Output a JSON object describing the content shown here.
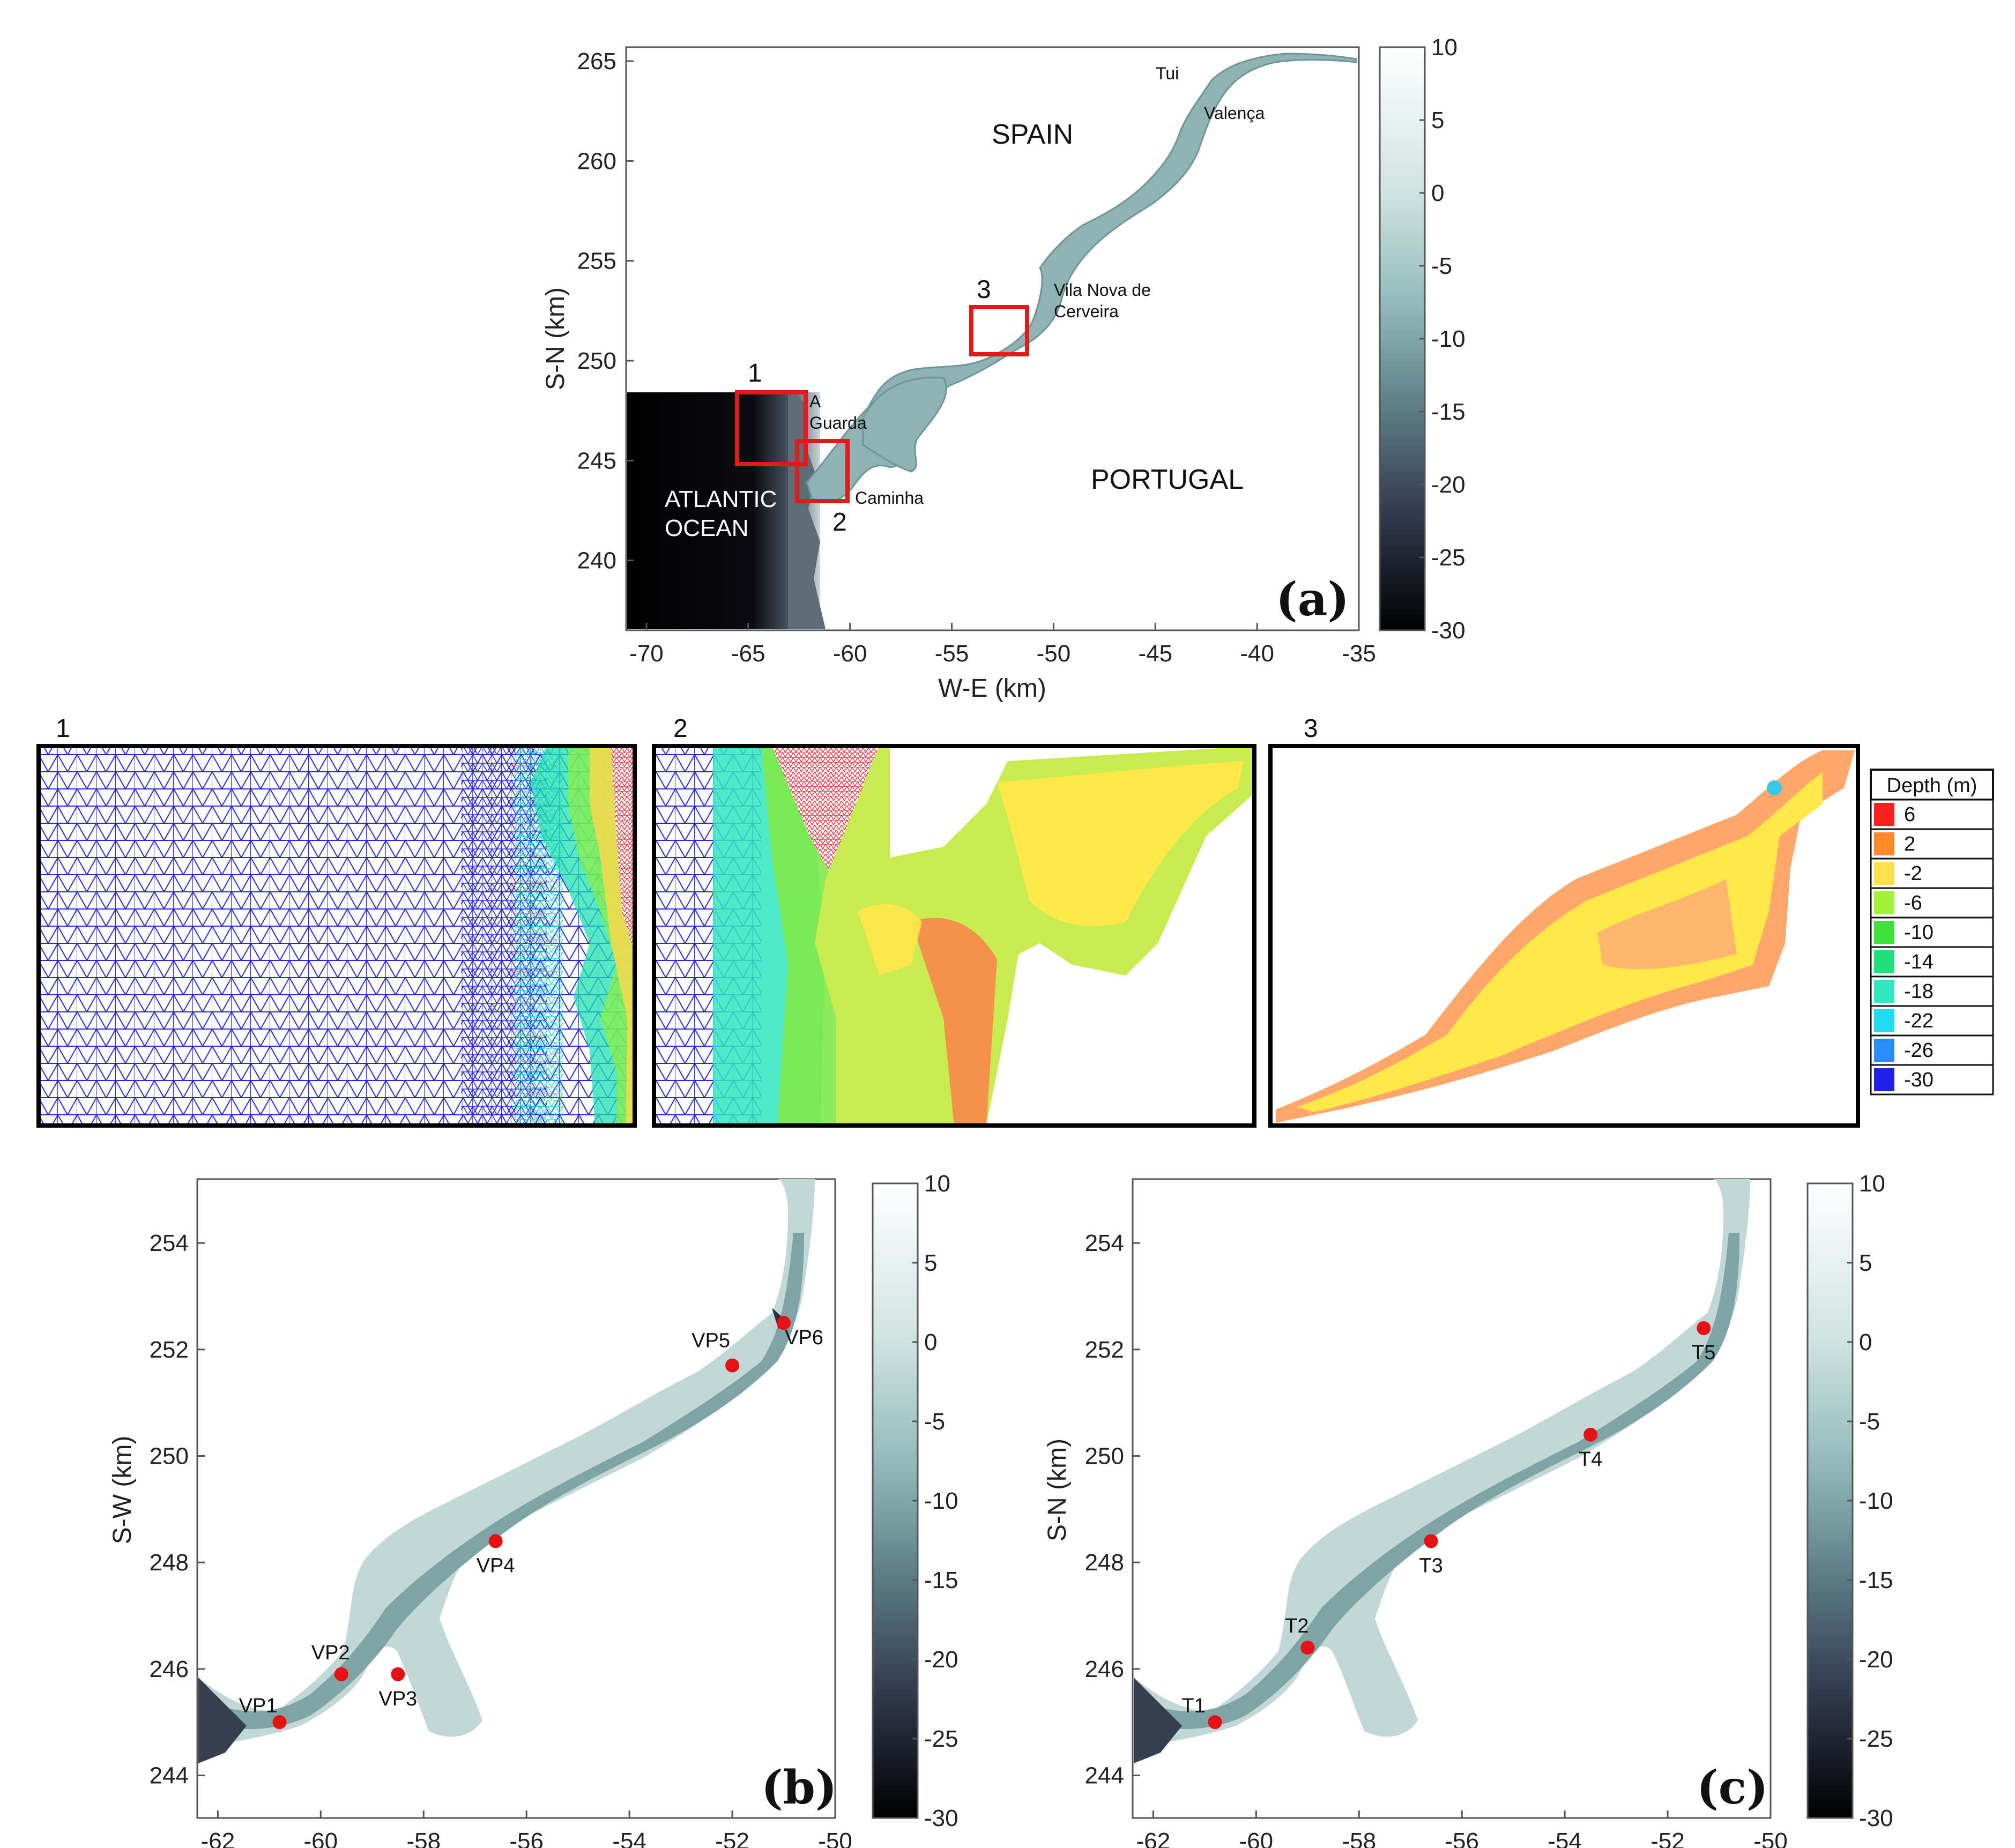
{
  "panel_a": {
    "letter": "(a)",
    "xlabel": "W-E (km)",
    "ylabel": "S-N (km)",
    "xticks": [
      "-70",
      "-65",
      "-60",
      "-55",
      "-50",
      "-45",
      "-40",
      "-35"
    ],
    "yticks": [
      "240",
      "245",
      "250",
      "255",
      "260",
      "265"
    ],
    "colorbar_ticks": [
      "10",
      "5",
      "0",
      "-5",
      "-10",
      "-15",
      "-20",
      "-25",
      "-30"
    ],
    "labels": {
      "spain": "SPAIN",
      "portugal": "PORTUGAL",
      "ocean_line1": "ATLANTIC",
      "ocean_line2": "OCEAN",
      "tui": "Tui",
      "valenca": "Valença",
      "vnc_line1": "Vila Nova de",
      "vnc_line2": "Cerveira",
      "guarda_line1": "A",
      "guarda_line2": "Guarda",
      "caminha": "Caminha"
    },
    "boxes": [
      "1",
      "2",
      "3"
    ]
  },
  "mesh_panels": {
    "titles": [
      "1",
      "2",
      "3"
    ],
    "legend_title": "Depth (m)",
    "legend": [
      {
        "value": "6",
        "color": "#ff1f1f"
      },
      {
        "value": "2",
        "color": "#ff8a2a"
      },
      {
        "value": "-2",
        "color": "#ffe04a"
      },
      {
        "value": "-6",
        "color": "#a2f23a"
      },
      {
        "value": "-10",
        "color": "#3fe23a"
      },
      {
        "value": "-14",
        "color": "#1fe07a"
      },
      {
        "value": "-18",
        "color": "#2fe6c0"
      },
      {
        "value": "-22",
        "color": "#20dcf0"
      },
      {
        "value": "-26",
        "color": "#2a8cf6"
      },
      {
        "value": "-30",
        "color": "#2020e8"
      }
    ]
  },
  "panel_b": {
    "letter": "(b)",
    "ylabel": "S-W (km)",
    "xticks": [
      "-62",
      "-60",
      "-58",
      "-56",
      "-54",
      "-52",
      "-50"
    ],
    "yticks": [
      "244",
      "246",
      "248",
      "250",
      "252",
      "254"
    ],
    "colorbar_ticks": [
      "10",
      "5",
      "0",
      "-5",
      "-10",
      "-15",
      "-20",
      "-25",
      "-30"
    ],
    "points": [
      {
        "label": "VP1",
        "x": -60.8,
        "y": 245.0
      },
      {
        "label": "VP2",
        "x": -59.6,
        "y": 245.9
      },
      {
        "label": "VP3",
        "x": -58.5,
        "y": 245.9
      },
      {
        "label": "VP4",
        "x": -56.6,
        "y": 248.4
      },
      {
        "label": "VP5",
        "x": -52.0,
        "y": 251.7
      },
      {
        "label": "VP6",
        "x": -51.0,
        "y": 252.5
      }
    ]
  },
  "panel_c": {
    "letter": "(c)",
    "ylabel": "S-N (km)",
    "xticks": [
      "-62",
      "-60",
      "-58",
      "-56",
      "-54",
      "-52",
      "-50"
    ],
    "yticks": [
      "244",
      "246",
      "248",
      "250",
      "252",
      "254"
    ],
    "colorbar_ticks": [
      "10",
      "5",
      "0",
      "-5",
      "-10",
      "-15",
      "-20",
      "-25",
      "-30"
    ],
    "points": [
      {
        "label": "T1",
        "x": -60.8,
        "y": 245.0
      },
      {
        "label": "T2",
        "x": -59.0,
        "y": 246.4
      },
      {
        "label": "T3",
        "x": -56.6,
        "y": 248.4
      },
      {
        "label": "T4",
        "x": -53.5,
        "y": 250.4
      },
      {
        "label": "T5",
        "x": -51.3,
        "y": 252.4
      }
    ]
  }
}
